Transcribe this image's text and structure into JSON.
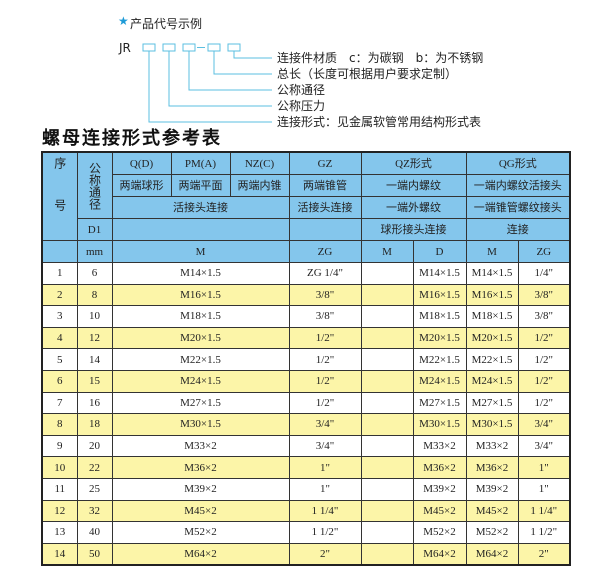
{
  "example": {
    "heading": "产品代号示例",
    "star_icon": "star-icon",
    "prefix": "JR",
    "labels": [
      "连接件材质　c：为碳钢　b：为不锈钢",
      "总长（长度可根据用户要求定制）",
      "公称通径",
      "公称压力",
      "连接形式：见金属软管常用结构形式表"
    ],
    "line_color": "#5bbfe0"
  },
  "title": "螺母连接形式参考表",
  "table": {
    "header": {
      "seq": "序号",
      "nominal": "公称通径",
      "q": "Q(D)",
      "pm": "PM(A)",
      "nz": "NZ(C)",
      "gz": "GZ",
      "qz": "QZ形式",
      "qg": "QG形式",
      "q2": "两端球形",
      "pm2": "两端平面",
      "nz2": "两端内锥",
      "gz2": "两端锥管",
      "qz2": "一端内螺纹",
      "qg2": "一端内螺纹活接头",
      "qpn3": "活接头连接",
      "gz3": "活接头连接",
      "qz3": "一端外螺纹",
      "qg3": "一端锥管螺纹接头",
      "d1": "D1",
      "qz4": "球形接头连接",
      "qg4": "连接",
      "mm": "mm",
      "m": "M",
      "zg": "ZG",
      "qzm": "M",
      "qzd": "D",
      "qgm": "M",
      "qgzg": "ZG"
    },
    "colors": {
      "header": "#84c6ec",
      "alt_row": "#fcf5a8"
    },
    "rows": [
      [
        "1",
        "6",
        "M14×1.5",
        "ZG 1/4\"",
        "",
        "M14×1.5",
        "M14×1.5",
        "1/4\""
      ],
      [
        "2",
        "8",
        "M16×1.5",
        "3/8\"",
        "",
        "M16×1.5",
        "M16×1.5",
        "3/8\""
      ],
      [
        "3",
        "10",
        "M18×1.5",
        "3/8\"",
        "",
        "M18×1.5",
        "M18×1.5",
        "3/8\""
      ],
      [
        "4",
        "12",
        "M20×1.5",
        "1/2\"",
        "",
        "M20×1.5",
        "M20×1.5",
        "1/2\""
      ],
      [
        "5",
        "14",
        "M22×1.5",
        "1/2\"",
        "",
        "M22×1.5",
        "M22×1.5",
        "1/2\""
      ],
      [
        "6",
        "15",
        "M24×1.5",
        "1/2\"",
        "",
        "M24×1.5",
        "M24×1.5",
        "1/2\""
      ],
      [
        "7",
        "16",
        "M27×1.5",
        "1/2\"",
        "",
        "M27×1.5",
        "M27×1.5",
        "1/2\""
      ],
      [
        "8",
        "18",
        "M30×1.5",
        "3/4\"",
        "",
        "M30×1.5",
        "M30×1.5",
        "3/4\""
      ],
      [
        "9",
        "20",
        "M33×2",
        "3/4\"",
        "",
        "M33×2",
        "M33×2",
        "3/4\""
      ],
      [
        "10",
        "22",
        "M36×2",
        "1\"",
        "",
        "M36×2",
        "M36×2",
        "1\""
      ],
      [
        "11",
        "25",
        "M39×2",
        "1\"",
        "",
        "M39×2",
        "M39×2",
        "1\""
      ],
      [
        "12",
        "32",
        "M45×2",
        "1 1/4\"",
        "",
        "M45×2",
        "M45×2",
        "1 1/4\""
      ],
      [
        "13",
        "40",
        "M52×2",
        "1 1/2\"",
        "",
        "M52×2",
        "M52×2",
        "1 1/2\""
      ],
      [
        "14",
        "50",
        "M64×2",
        "2\"",
        "",
        "M64×2",
        "M64×2",
        "2\""
      ]
    ]
  }
}
